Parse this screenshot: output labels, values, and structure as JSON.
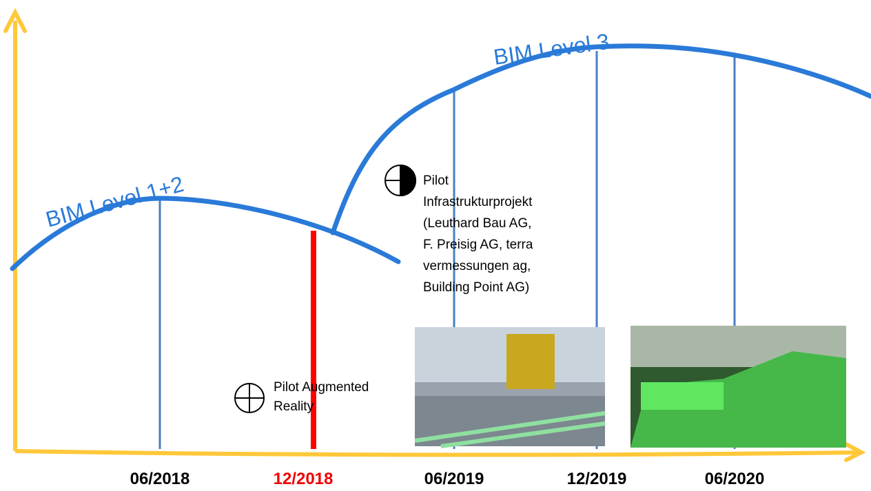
{
  "curves": [
    {
      "label": "BIM Level 1+2"
    },
    {
      "label": "BIM Level 3"
    }
  ],
  "milestones": [
    {
      "label_lines": [
        "Pilot Augmented",
        "Reality"
      ]
    },
    {
      "label_lines": [
        "Pilot",
        "Infrastrukturprojekt",
        "(Leuthard Bau AG,",
        "F. Preisig AG, terra",
        "vermessungen ag,",
        "Building Point AG)"
      ]
    }
  ],
  "timeline": [
    "06/2018",
    "12/2018",
    "06/2019",
    "12/2019",
    "06/2020"
  ]
}
